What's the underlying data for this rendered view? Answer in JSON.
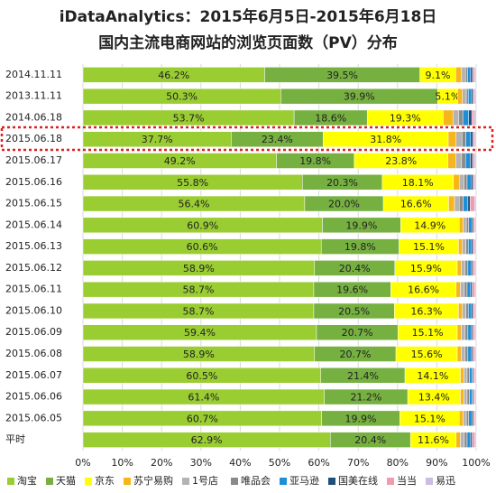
{
  "chart_data": {
    "type": "stacked-bar-horizontal",
    "title": "iDataAnalytics：2015年6月5日-2015年6月18日",
    "subtitle": "国内主流电商网站的浏览页面数（PV）分布",
    "categories": [
      "2014.11.11",
      "2013.11.11",
      "2014.06.18",
      "2015.06.18",
      "2015.06.17",
      "2015.06.16",
      "2015.06.15",
      "2015.06.14",
      "2015.06.13",
      "2015.06.12",
      "2015.06.11",
      "2015.06.10",
      "2015.06.09",
      "2015.06.08",
      "2015.06.07",
      "2015.06.06",
      "2015.06.05",
      "平时"
    ],
    "series": [
      {
        "name": "淘宝",
        "color": "#9acd32",
        "values": [
          46.2,
          50.3,
          53.7,
          37.7,
          49.2,
          55.8,
          56.4,
          60.9,
          60.6,
          58.9,
          58.7,
          58.7,
          59.4,
          58.9,
          60.5,
          61.4,
          60.7,
          62.9
        ],
        "value_labels": [
          "46.2%",
          "50.3%",
          "53.7%",
          "37.7%",
          "49.2%",
          "55.8%",
          "56.4%",
          "60.9%",
          "60.6%",
          "58.9%",
          "58.7%",
          "58.7%",
          "59.4%",
          "58.9%",
          "60.5%",
          "61.4%",
          "60.7%",
          "62.9%"
        ]
      },
      {
        "name": "天猫",
        "color": "#76b041",
        "values": [
          39.5,
          39.9,
          18.6,
          23.4,
          19.8,
          20.3,
          20.0,
          19.9,
          19.8,
          20.4,
          19.6,
          20.5,
          20.7,
          20.7,
          21.4,
          21.2,
          19.9,
          20.4
        ],
        "value_labels": [
          "39.5%",
          "39.9%",
          "18.6%",
          "23.4%",
          "19.8%",
          "20.3%",
          "20.0%",
          "19.9%",
          "19.8%",
          "20.4%",
          "19.6%",
          "20.5%",
          "20.7%",
          "20.7%",
          "21.4%",
          "21.2%",
          "19.9%",
          "20.4%"
        ]
      },
      {
        "name": "京东",
        "color": "#ffff00",
        "values": [
          9.1,
          5.1,
          19.3,
          31.8,
          23.8,
          18.1,
          16.6,
          14.9,
          15.1,
          15.9,
          16.6,
          16.3,
          15.1,
          15.6,
          14.1,
          13.4,
          15.1,
          11.6
        ],
        "value_labels": [
          "9.1%",
          "5.1%",
          "19.3%",
          "31.8%",
          "23.8%",
          "18.1%",
          "16.6%",
          "14.9%",
          "15.1%",
          "15.9%",
          "16.6%",
          "16.3%",
          "15.1%",
          "15.6%",
          "14.1%",
          "13.4%",
          "15.1%",
          "11.6%"
        ]
      },
      {
        "name": "苏宁易购",
        "color": "#f7b51c",
        "values": [
          1.5,
          1.2,
          2.5,
          2.0,
          2.0,
          1.5,
          1.5,
          1.0,
          1.0,
          1.0,
          1.1,
          1.0,
          1.0,
          1.0,
          0.9,
          0.9,
          1.0,
          1.1
        ]
      },
      {
        "name": "1号店",
        "color": "#b3b3b3",
        "values": [
          1.0,
          1.0,
          1.5,
          1.5,
          1.5,
          1.2,
          1.2,
          0.8,
          0.9,
          1.0,
          1.0,
          0.9,
          1.0,
          1.0,
          0.8,
          0.8,
          0.8,
          1.0
        ]
      },
      {
        "name": "唯品会",
        "color": "#8a8a8a",
        "values": [
          0.5,
          0.5,
          1.0,
          1.0,
          1.0,
          0.8,
          1.0,
          0.6,
          0.6,
          0.7,
          0.7,
          0.6,
          0.7,
          0.7,
          0.6,
          0.6,
          0.6,
          0.7
        ]
      },
      {
        "name": "亚马逊",
        "color": "#1e8fd6",
        "values": [
          0.8,
          0.8,
          1.5,
          1.2,
          1.2,
          1.0,
          1.2,
          0.8,
          0.8,
          0.8,
          0.9,
          0.8,
          0.8,
          0.8,
          0.7,
          0.7,
          0.8,
          0.9
        ]
      },
      {
        "name": "国美在线",
        "color": "#1f4e79",
        "values": [
          0.5,
          0.4,
          0.8,
          0.6,
          0.6,
          0.5,
          0.6,
          0.4,
          0.4,
          0.4,
          0.4,
          0.4,
          0.4,
          0.4,
          0.3,
          0.3,
          0.4,
          0.4
        ]
      },
      {
        "name": "当当",
        "color": "#f29bb0",
        "values": [
          0.5,
          0.4,
          0.6,
          0.4,
          0.5,
          0.4,
          1.1,
          0.4,
          0.5,
          0.6,
          0.7,
          0.5,
          0.6,
          0.6,
          0.4,
          0.4,
          0.4,
          0.7
        ]
      },
      {
        "name": "易迅",
        "color": "#c9bde0",
        "values": [
          0.4,
          0.4,
          0.5,
          0.4,
          0.4,
          0.4,
          0.4,
          0.3,
          0.3,
          0.3,
          0.3,
          0.3,
          0.3,
          0.3,
          0.3,
          0.3,
          0.3,
          0.3
        ]
      }
    ],
    "xlim": [
      0,
      100
    ],
    "xticks": [
      {
        "value": 0,
        "label": "0%"
      },
      {
        "value": 10,
        "label": "10%"
      },
      {
        "value": 20,
        "label": "20%"
      },
      {
        "value": 30,
        "label": "30%"
      },
      {
        "value": 40,
        "label": "40%"
      },
      {
        "value": 50,
        "label": "50%"
      },
      {
        "value": 60,
        "label": "60%"
      },
      {
        "value": 70,
        "label": "70%"
      },
      {
        "value": 80,
        "label": "80%"
      },
      {
        "value": 90,
        "label": "90%"
      },
      {
        "value": 100,
        "label": "100%"
      }
    ],
    "grid": true
  }
}
